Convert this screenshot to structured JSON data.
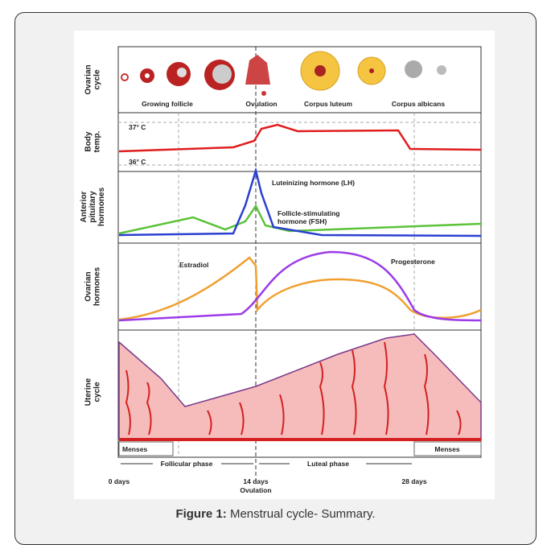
{
  "figure": {
    "panels": [
      [
        "Ovarian",
        "cycle"
      ],
      [
        "Body",
        "temp."
      ],
      [
        "Anterior",
        "pituitary",
        "hormones"
      ],
      [
        "Ovarian",
        "hormones"
      ],
      [
        "Uterine",
        "cycle"
      ]
    ],
    "ovarian_stages": [
      "Growing follicle",
      "Ovulation",
      "Corpus luteum",
      "Corpus albicans"
    ],
    "temperatures": [
      "37° C",
      "36° C"
    ],
    "lh_label": "Luteinizing hormone (LH)",
    "fsh_label": [
      "Follicle-stimulating",
      "hormone (FSH)"
    ],
    "estradiol_label": "Estradiol",
    "progesterone_label": "Progesterone",
    "menses": [
      "Menses",
      "Menses"
    ],
    "phases": [
      "Follicular phase",
      "Luteal phase"
    ],
    "days": [
      "0 days",
      "14 days",
      "28 days"
    ],
    "ovulation_label": "Ovulation"
  },
  "caption": {
    "label": "Figure 1:",
    "text": " Menstrual cycle- Summary."
  }
}
